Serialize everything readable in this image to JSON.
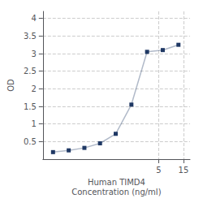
{
  "chart_data": {
    "type": "line",
    "x": [
      0.047,
      0.094,
      0.188,
      0.375,
      0.75,
      1.5,
      3,
      6,
      12
    ],
    "values": [
      0.2,
      0.25,
      0.32,
      0.45,
      0.72,
      1.55,
      3.05,
      3.1,
      3.25
    ],
    "xlabel": "Human TIMD4\nConcentration (ng/ml)",
    "ylabel": "OD",
    "log": "x",
    "xlim": [
      0.03,
      20
    ],
    "xticks": [
      5,
      15
    ],
    "ylim": [
      0,
      4.2
    ],
    "yticks": [
      0.5,
      1,
      1.5,
      2,
      2.5,
      3,
      3.5,
      4
    ],
    "color": "#1f3864",
    "marker": "square",
    "grid": true
  }
}
